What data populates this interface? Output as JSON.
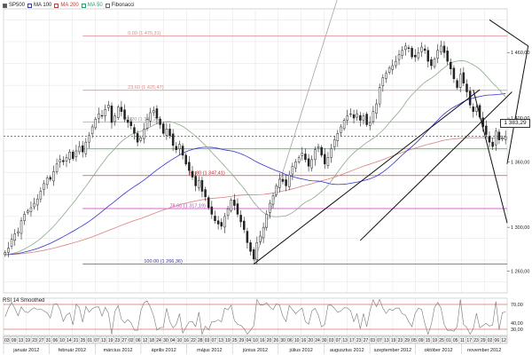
{
  "legend": [
    {
      "label": "SP500",
      "color": "#222222",
      "checked": true
    },
    {
      "label": "MA 100",
      "color": "#3333cc",
      "checked": true
    },
    {
      "label": "MA 200",
      "color": "#cc3333",
      "checked": true
    },
    {
      "label": "MA 50",
      "color": "#339966",
      "checked": true
    },
    {
      "label": "Fibonacci",
      "color": "#222222",
      "checked": true
    }
  ],
  "current_price": "1 383,29",
  "rsi_label": "RSI 14 Smoothed",
  "colors": {
    "price": "#222222",
    "ma100": "#3333cc",
    "ma200": "#d98080",
    "ma50": "#88aa88",
    "fib_gray": "#999999",
    "fib_red": "#cc2222",
    "fib_magenta": "#cc33cc",
    "fib_blue": "#3333aa",
    "fib_green": "#33aa33",
    "fib_lightred": "#dd8888",
    "trend": "#111111",
    "grid": "#e3e3e3"
  },
  "chart_data": {
    "type": "candlestick",
    "title": "",
    "ylim": [
      1240,
      1500
    ],
    "y_ticks": [
      "1 460,00",
      "1 400,00",
      "1 360,00",
      "1 300,00",
      "1 260,00"
    ],
    "y_tick_values": [
      1460,
      1400,
      1360,
      1300,
      1260
    ],
    "months": [
      "január 2012",
      "február 2012",
      "március 2012",
      "április 2012",
      "május 2012",
      "június 2012",
      "július 2012",
      "augusztus 2012",
      "szeptember 2012",
      "október 2012",
      "november 2012"
    ],
    "days": [
      "03",
      "09",
      "13",
      "19",
      "23",
      "27",
      "31",
      "06",
      "10",
      "14",
      "21",
      "25",
      "01",
      "07",
      "13",
      "19",
      "23",
      "27",
      "02",
      "06",
      "12",
      "18",
      "24",
      "30",
      "04",
      "10",
      "16",
      "22",
      "28",
      "03",
      "07",
      "13",
      "19",
      "25",
      "29",
      "04",
      "10",
      "16",
      "20",
      "26",
      "30",
      "06",
      "10",
      "16",
      "20",
      "24",
      "30",
      "03",
      "07",
      "13",
      "17",
      "23",
      "27",
      "03",
      "07",
      "13",
      "19",
      "23",
      "29",
      "05",
      "09",
      "15",
      "19",
      "25",
      "01",
      "05",
      "11",
      "17",
      "23",
      "29",
      "02",
      "06",
      "12"
    ],
    "fibonacci": [
      {
        "label": "0.00 (1 475,31)",
        "value": 1475.31,
        "color": "fib_lightred"
      },
      {
        "label": "23.60 (1 425,47)",
        "value": 1425.47,
        "color": "fib_lightred"
      },
      {
        "label": "38.20 (1 396,26)",
        "value": 1396.26,
        "color": "fib_gray"
      },
      {
        "label": "50.00 (1 371,80)",
        "value": 1371.8,
        "color": "fib_green"
      },
      {
        "label": "61.80 (1 347,41)",
        "value": 1347.41,
        "color": "fib_red"
      },
      {
        "label": "78.60 (1 317,19)",
        "value": 1317.19,
        "color": "fib_magenta"
      },
      {
        "label": "100.00 (1 266,36)",
        "value": 1266.36,
        "color": "fib_blue"
      }
    ],
    "close": [
      1277,
      1281,
      1289,
      1294,
      1296,
      1306,
      1312,
      1315,
      1318,
      1322,
      1326,
      1333,
      1340,
      1345,
      1344,
      1351,
      1358,
      1362,
      1360,
      1364,
      1369,
      1363,
      1370,
      1374,
      1369,
      1378,
      1384,
      1392,
      1399,
      1404,
      1402,
      1408,
      1412,
      1396,
      1402,
      1410,
      1406,
      1399,
      1396,
      1393,
      1386,
      1378,
      1382,
      1390,
      1399,
      1405,
      1407,
      1400,
      1394,
      1386,
      1390,
      1384,
      1375,
      1371,
      1376,
      1366,
      1358,
      1352,
      1346,
      1338,
      1343,
      1333,
      1328,
      1318,
      1312,
      1306,
      1303,
      1301,
      1310,
      1317,
      1325,
      1320,
      1312,
      1305,
      1298,
      1286,
      1278,
      1271,
      1286,
      1292,
      1300,
      1312,
      1322,
      1329,
      1338,
      1344,
      1342,
      1338,
      1348,
      1356,
      1360,
      1364,
      1368,
      1362,
      1356,
      1362,
      1371,
      1374,
      1366,
      1358,
      1364,
      1372,
      1380,
      1386,
      1392,
      1398,
      1402,
      1404,
      1400,
      1404,
      1398,
      1402,
      1394,
      1396,
      1406,
      1413,
      1428,
      1437,
      1441,
      1446,
      1448,
      1452,
      1458,
      1462,
      1466,
      1464,
      1456,
      1456,
      1460,
      1465,
      1462,
      1452,
      1448,
      1454,
      1462,
      1466,
      1460,
      1452,
      1445,
      1436,
      1428,
      1440,
      1432,
      1424,
      1412,
      1406,
      1410,
      1401,
      1392,
      1385,
      1378,
      1374,
      1388,
      1380,
      1382,
      1383
    ]
  }
}
